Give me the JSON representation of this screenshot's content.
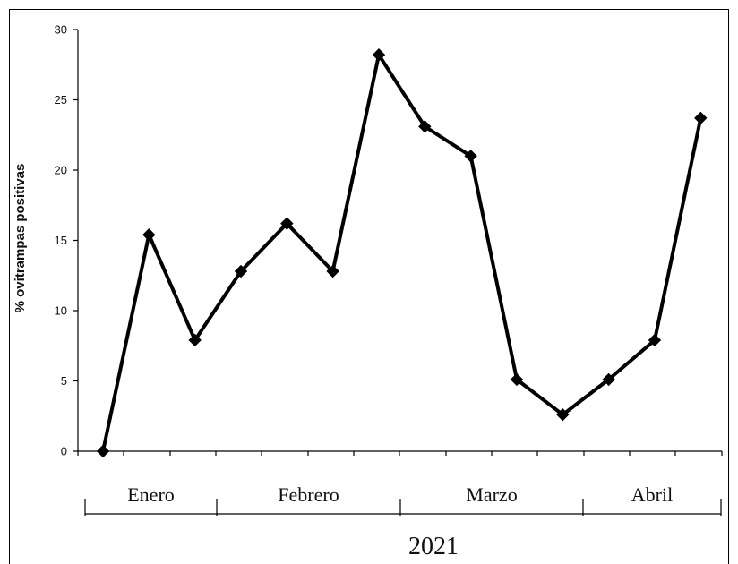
{
  "chart_data": {
    "type": "line",
    "title": "",
    "xlabel": "2021",
    "ylabel": "% ovitrampas positivas",
    "ylim": [
      0,
      30
    ],
    "yticks": [
      0,
      5,
      10,
      15,
      20,
      25,
      30
    ],
    "grid": false,
    "legend": "none",
    "groups": [
      {
        "label": "Enero",
        "count": 3
      },
      {
        "label": "Febrero",
        "count": 4
      },
      {
        "label": "Marzo",
        "count": 4
      },
      {
        "label": "Abril",
        "count": 3
      }
    ],
    "series": [
      {
        "values": [
          0,
          15.4,
          7.9,
          12.8,
          16.2,
          12.8,
          28.2,
          23.1,
          21.0,
          5.1,
          2.6,
          5.1,
          7.9,
          23.7
        ],
        "color": "#000000",
        "marker": "diamond"
      }
    ]
  }
}
